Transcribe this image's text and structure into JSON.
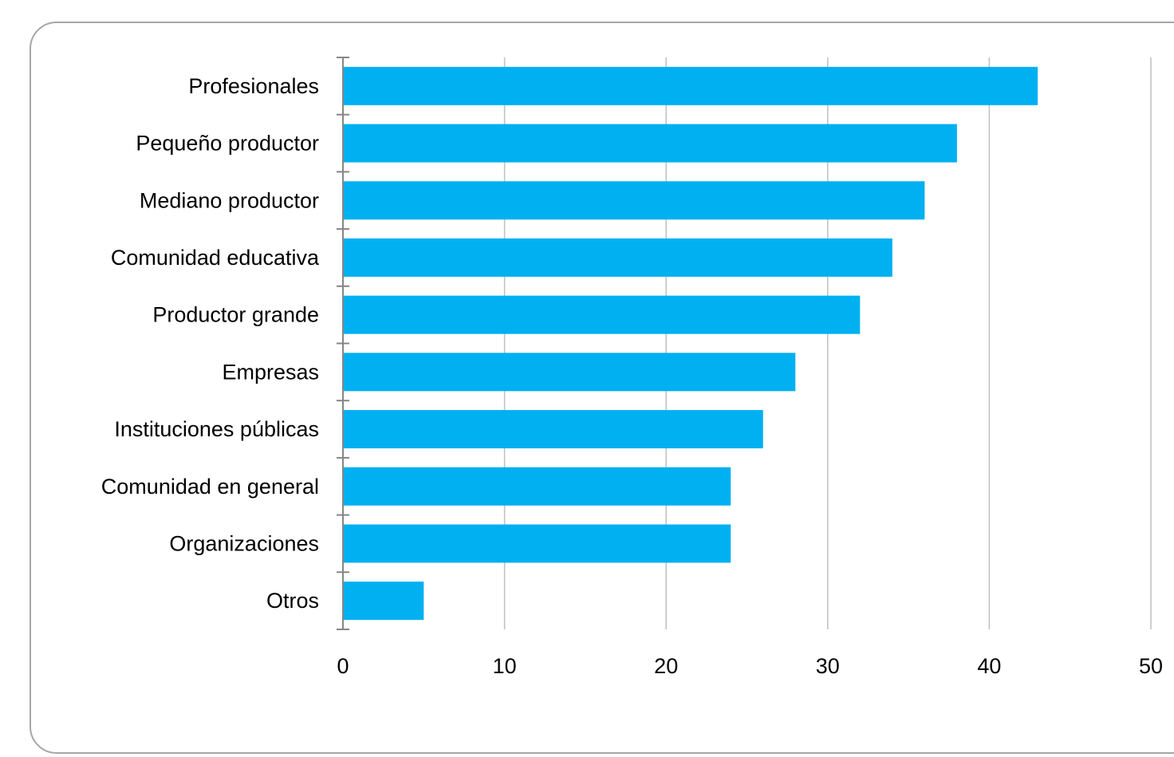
{
  "chart_data": {
    "type": "bar",
    "orientation": "horizontal",
    "categories": [
      "Profesionales",
      "Pequeño productor",
      "Mediano productor",
      "Comunidad educativa",
      "Productor grande",
      "Empresas",
      "Instituciones públicas",
      "Comunidad en general",
      "Organizaciones",
      "Otros"
    ],
    "values": [
      43,
      38,
      36,
      34,
      32,
      28,
      26,
      24,
      24,
      5
    ],
    "xlim": [
      0,
      50
    ],
    "xticks": [
      "0",
      "10",
      "20",
      "30",
      "40",
      "50"
    ],
    "grid": "vertical",
    "legend": "none",
    "colors": {
      "bar": "#00b0f0",
      "grid": "#bfbfbf",
      "axis": "#868686",
      "frame": "#a6a6a6"
    }
  }
}
